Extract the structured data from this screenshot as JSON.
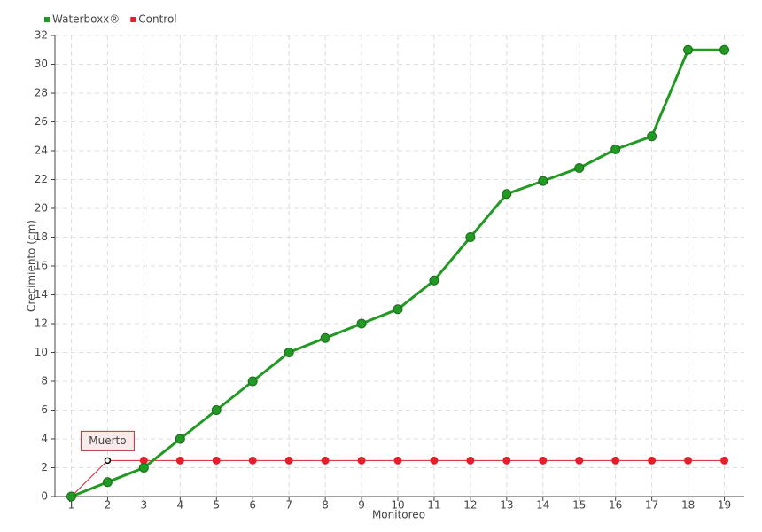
{
  "chart_data": {
    "type": "line",
    "x_label": "Monitoreo",
    "y_label": "Crecimiento (cm)",
    "categories": [
      "1",
      "2",
      "3",
      "4",
      "5",
      "6",
      "7",
      "8",
      "9",
      "10",
      "11",
      "12",
      "13",
      "14",
      "15",
      "16",
      "17",
      "18",
      "19"
    ],
    "series": [
      {
        "name": "Waterboxx®",
        "color": "#229922",
        "values": [
          0,
          1,
          2,
          4,
          6,
          8,
          10,
          11,
          12,
          13,
          15,
          18,
          21,
          21.9,
          22.8,
          24.1,
          25,
          31,
          31
        ]
      },
      {
        "name": "Control",
        "color": "#e0202c",
        "values": [
          0,
          2.5,
          2.5,
          2.5,
          2.5,
          2.5,
          2.5,
          2.5,
          2.5,
          2.5,
          2.5,
          2.5,
          2.5,
          2.5,
          2.5,
          2.5,
          2.5,
          2.5,
          2.5
        ]
      }
    ],
    "annotations": [
      {
        "text": "Muerto",
        "series": "Control",
        "category": "2"
      }
    ],
    "ylim": [
      0,
      32
    ],
    "yticks": [
      0,
      2,
      4,
      6,
      8,
      10,
      12,
      14,
      16,
      18,
      20,
      22,
      24,
      26,
      28,
      30,
      32
    ],
    "grid": true,
    "legend": "top-left"
  }
}
